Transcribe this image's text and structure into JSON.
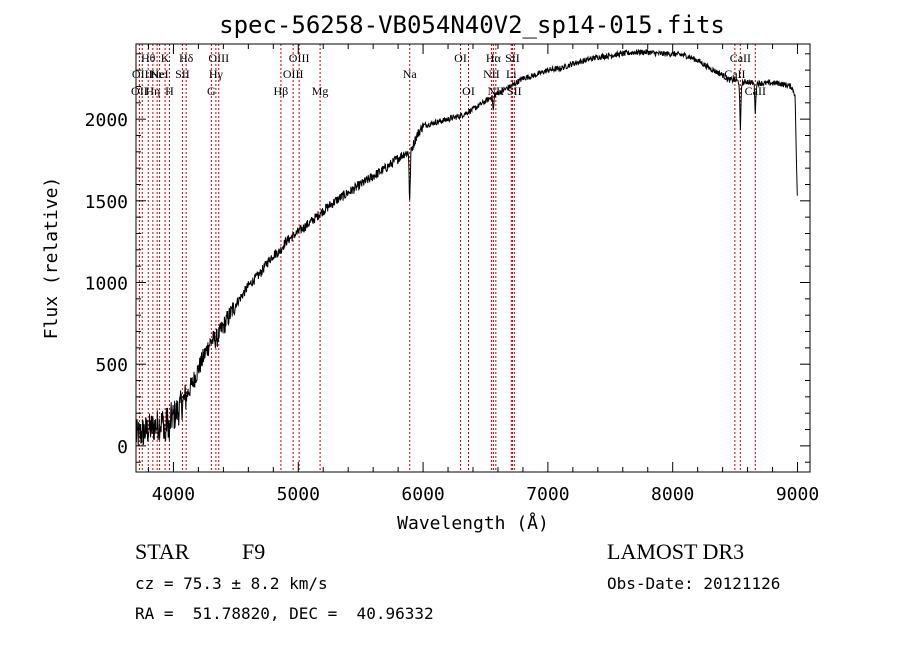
{
  "chart_data": {
    "type": "line",
    "title": "spec-56258-VB054N40V2_sp14-015.fits",
    "xlabel": "Wavelength (Å)",
    "ylabel": "Flux (relative)",
    "xlim": [
      3700,
      9100
    ],
    "ylim": [
      -160,
      2460
    ],
    "xticks": [
      4000,
      5000,
      6000,
      7000,
      8000,
      9000
    ],
    "yticks": [
      0,
      500,
      1000,
      1500,
      2000
    ],
    "grid": false,
    "series": [
      {
        "name": "spectrum",
        "x": [
          3700,
          3750,
          3800,
          3850,
          3900,
          3950,
          4000,
          4050,
          4100,
          4150,
          4200,
          4250,
          4300,
          4350,
          4400,
          4450,
          4500,
          4550,
          4600,
          4650,
          4700,
          4750,
          4800,
          4850,
          4900,
          4950,
          5000,
          5100,
          5200,
          5300,
          5400,
          5500,
          5600,
          5700,
          5800,
          5850,
          5900,
          5950,
          6000,
          6100,
          6200,
          6300,
          6400,
          6500,
          6600,
          6700,
          6800,
          6900,
          7000,
          7100,
          7200,
          7300,
          7400,
          7500,
          7600,
          7700,
          7800,
          7900,
          8000,
          8100,
          8200,
          8300,
          8400,
          8450,
          8500,
          8550,
          8600,
          8650,
          8700,
          8750,
          8800,
          8850,
          8900,
          8950,
          8980,
          9000
        ],
        "y": [
          60,
          80,
          100,
          120,
          140,
          150,
          180,
          230,
          300,
          380,
          470,
          560,
          640,
          660,
          730,
          800,
          870,
          920,
          980,
          1020,
          1060,
          1120,
          1170,
          1190,
          1250,
          1280,
          1310,
          1370,
          1440,
          1500,
          1550,
          1600,
          1650,
          1700,
          1760,
          1790,
          1800,
          1900,
          1960,
          1980,
          2000,
          2020,
          2060,
          2110,
          2160,
          2200,
          2250,
          2270,
          2300,
          2310,
          2340,
          2360,
          2380,
          2390,
          2400,
          2410,
          2410,
          2400,
          2400,
          2390,
          2360,
          2310,
          2270,
          2240,
          2240,
          2220,
          2230,
          2220,
          2220,
          2220,
          2220,
          2220,
          2210,
          2200,
          2150,
          1450
        ]
      }
    ],
    "absorption_dips": [
      {
        "x": 3933,
        "depth": 120
      },
      {
        "x": 3968,
        "depth": 110
      },
      {
        "x": 5893,
        "depth": 300
      },
      {
        "x": 6563,
        "depth": 90
      },
      {
        "x": 8542,
        "depth": 300
      },
      {
        "x": 8662,
        "depth": 180
      }
    ],
    "spectral_lines": [
      {
        "wavelength": 3727,
        "label": "OII",
        "row": 3
      },
      {
        "wavelength": 3750,
        "label": "OIII",
        "row": 2
      },
      {
        "wavelength": 3798,
        "label": "Hθ",
        "row": 1
      },
      {
        "wavelength": 3835,
        "label": "Hη",
        "row": 3
      },
      {
        "wavelength": 3869,
        "label": "Ne",
        "row": 2
      },
      {
        "wavelength": 3889,
        "label": "HeI",
        "row": 2
      },
      {
        "wavelength": 3933,
        "label": "K",
        "row": 1
      },
      {
        "wavelength": 3968,
        "label": "H",
        "row": 3
      },
      {
        "wavelength": 4072,
        "label": "SII",
        "row": 2
      },
      {
        "wavelength": 4102,
        "label": "Hδ",
        "row": 1
      },
      {
        "wavelength": 4304,
        "label": "G",
        "row": 3
      },
      {
        "wavelength": 4340,
        "label": "Hγ",
        "row": 2
      },
      {
        "wavelength": 4363,
        "label": "OIII",
        "row": 1
      },
      {
        "wavelength": 4861,
        "label": "Hβ",
        "row": 3
      },
      {
        "wavelength": 4959,
        "label": "OIII",
        "row": 2
      },
      {
        "wavelength": 5007,
        "label": "OIII",
        "row": 1
      },
      {
        "wavelength": 5175,
        "label": "Mg",
        "row": 3
      },
      {
        "wavelength": 5893,
        "label": "Na",
        "row": 2
      },
      {
        "wavelength": 6300,
        "label": "OI",
        "row": 1
      },
      {
        "wavelength": 6364,
        "label": "OI",
        "row": 3
      },
      {
        "wavelength": 6548,
        "label": "NII",
        "row": 2
      },
      {
        "wavelength": 6563,
        "label": "Hα",
        "row": 1
      },
      {
        "wavelength": 6583,
        "label": "NII",
        "row": 3
      },
      {
        "wavelength": 6707,
        "label": "Li",
        "row": 2
      },
      {
        "wavelength": 6716,
        "label": "SII",
        "row": 1
      },
      {
        "wavelength": 6731,
        "label": "SII",
        "row": 3
      },
      {
        "wavelength": 8498,
        "label": "CaII",
        "row": 2
      },
      {
        "wavelength": 8542,
        "label": "CaII",
        "row": 1
      },
      {
        "wavelength": 8662,
        "label": "CaII",
        "row": 3
      }
    ],
    "line_color": "#000000",
    "marker_color": "#cc0000"
  },
  "info": {
    "object_class": "STAR",
    "subclass": "F9",
    "survey": "LAMOST DR3",
    "cz": "cz = 75.3 ± 8.2 km/s",
    "obs_date": "Obs-Date: 20121126",
    "coords": "RA =  51.78820, DEC =  40.96332"
  }
}
